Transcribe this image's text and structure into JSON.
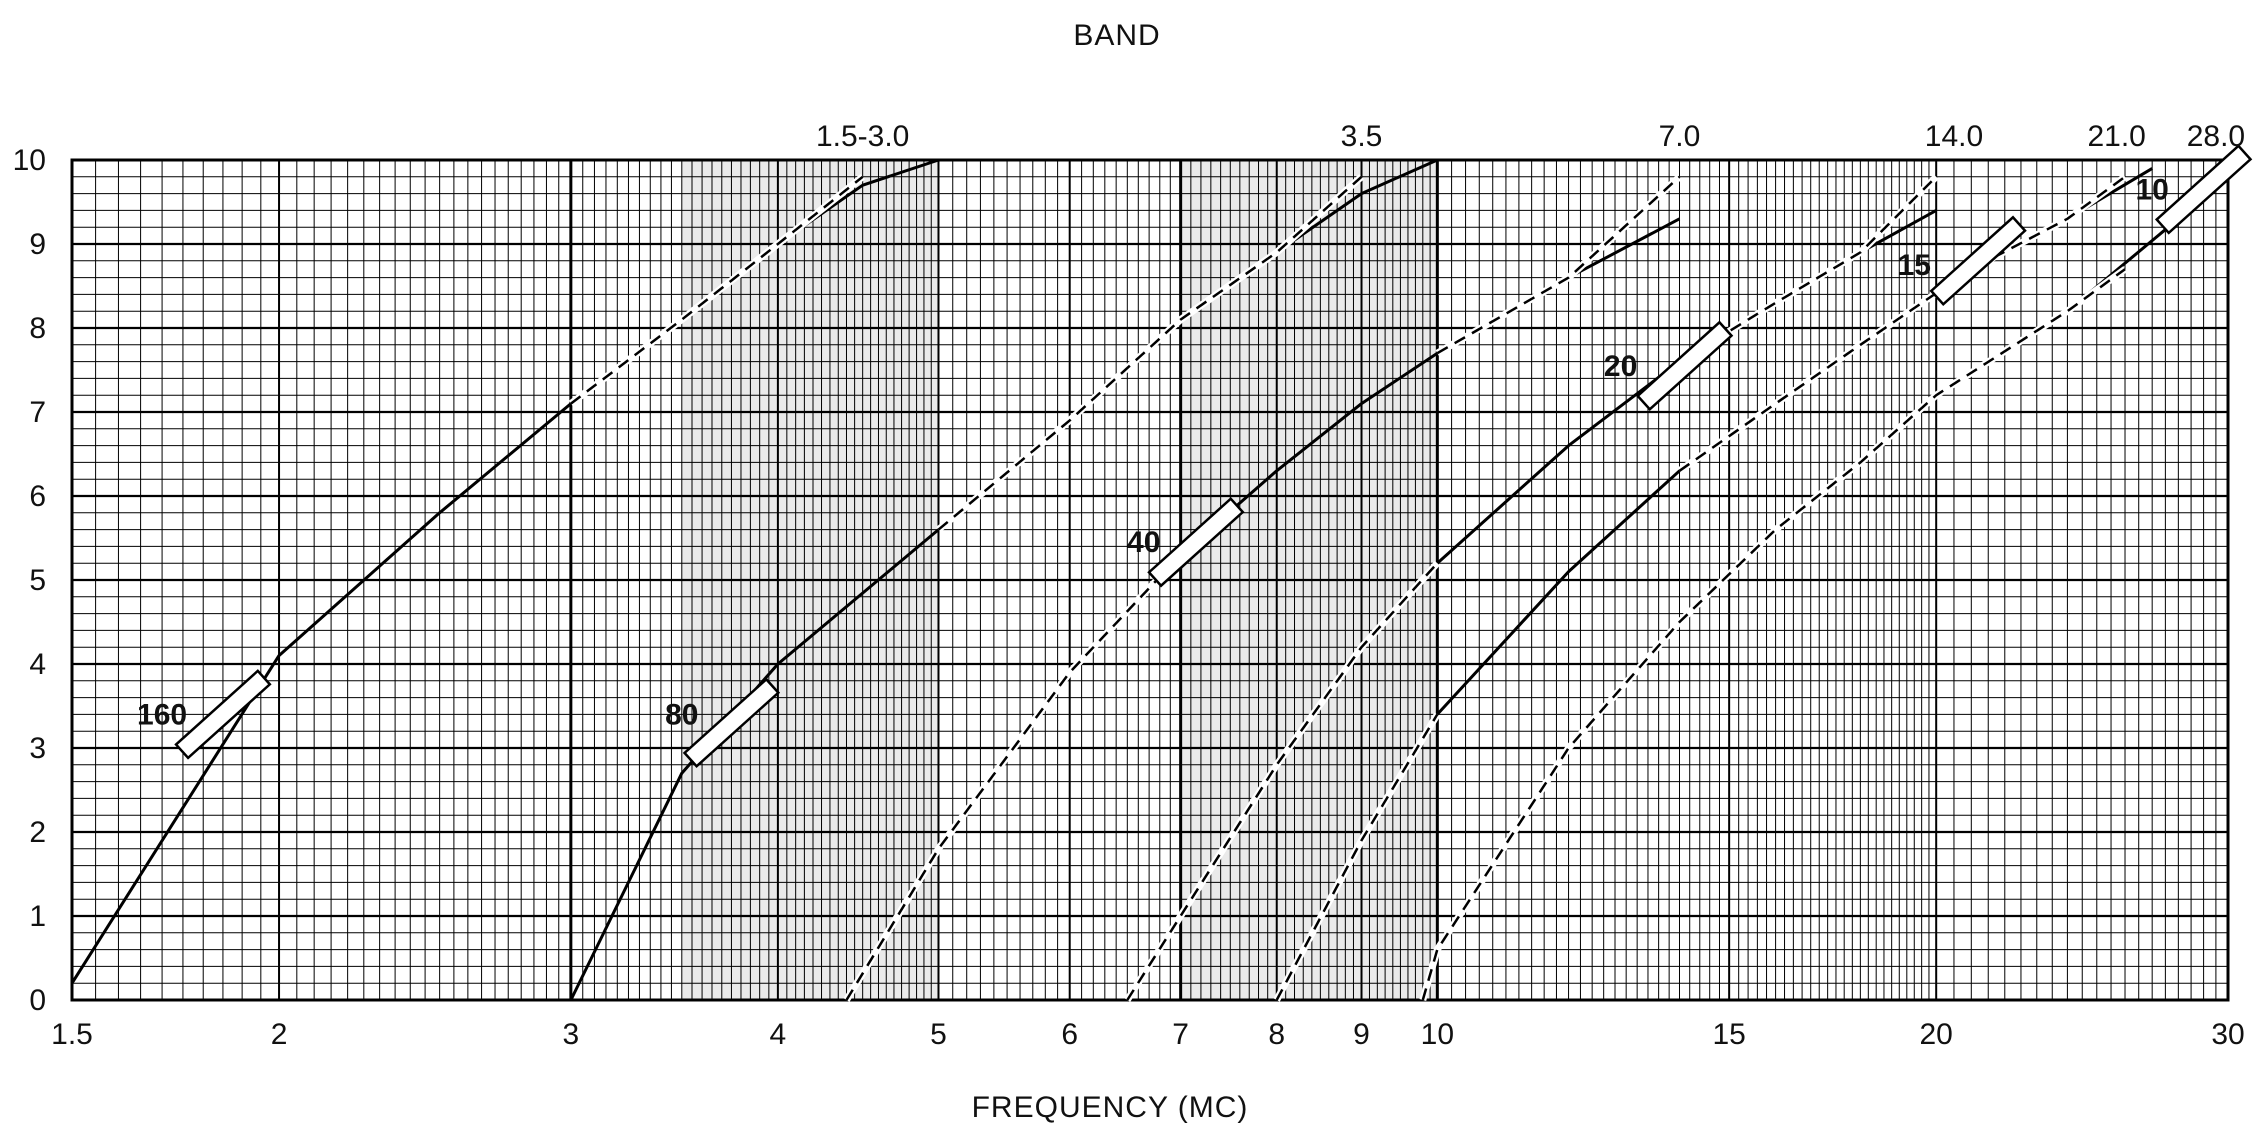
{
  "chart_data": {
    "type": "line",
    "title": "BAND",
    "xlabel": "FREQUENCY (MC)",
    "ylabel": "",
    "xscale": "log",
    "xlim": [
      1.5,
      30
    ],
    "ylim": [
      0,
      10
    ],
    "x_ticks": [
      1.5,
      2,
      3,
      4,
      5,
      6,
      7,
      8,
      9,
      10,
      15,
      20,
      30
    ],
    "x_tick_labels": [
      "1.5",
      "2",
      "3",
      "4",
      "5",
      "6",
      "7",
      "8",
      "9",
      "10",
      "15",
      "20",
      "30"
    ],
    "y_ticks": [
      0,
      1,
      2,
      3,
      4,
      5,
      6,
      7,
      8,
      9,
      10
    ],
    "y_tick_labels": [
      "0",
      "1",
      "2",
      "3",
      "4",
      "5",
      "6",
      "7",
      "8",
      "9",
      "10"
    ],
    "grid": true,
    "shaded_x_ranges": [
      [
        3.5,
        5.0
      ],
      [
        7.0,
        10.0
      ]
    ],
    "band_labels": [
      {
        "text": "1.5-3.0",
        "x": 4.5
      },
      {
        "text": "3.5",
        "x": 9.0
      },
      {
        "text": "7.0",
        "x": 14.0
      },
      {
        "text": "14.0",
        "x": 20.5
      },
      {
        "text": "21.0",
        "x": 25.7
      },
      {
        "text": "28.0",
        "x": 29.5
      }
    ],
    "series": [
      {
        "style": "solid",
        "x": [
          1.5,
          2.0,
          2.5,
          3.0,
          3.5,
          4.0,
          4.5,
          5.0
        ],
        "y": [
          0.2,
          4.1,
          5.8,
          7.1,
          8.1,
          9.0,
          9.7,
          10.0
        ]
      },
      {
        "style": "solid",
        "x": [
          3.0,
          3.5,
          4.0,
          5.0,
          6.0,
          7.0,
          8.0,
          9.0,
          10.0
        ],
        "y": [
          0.0,
          2.7,
          4.0,
          5.6,
          6.9,
          8.1,
          8.9,
          9.6,
          10.0
        ]
      },
      {
        "style": "solid",
        "x": [
          4.4,
          5.0,
          6.0,
          7.0,
          8.0,
          9.0,
          10.0,
          12.0,
          14.0
        ],
        "y": [
          0.0,
          1.8,
          3.9,
          5.3,
          6.3,
          7.1,
          7.7,
          8.6,
          9.3
        ]
      },
      {
        "style": "solid",
        "x": [
          6.5,
          7.0,
          8.0,
          9.0,
          10.0,
          12.0,
          14.0,
          16.0,
          18.0,
          20.0
        ],
        "y": [
          0.0,
          1.0,
          2.8,
          4.2,
          5.2,
          6.6,
          7.6,
          8.3,
          8.9,
          9.4
        ]
      },
      {
        "style": "solid",
        "x": [
          8.0,
          9.0,
          10.0,
          12.0,
          14.0,
          16.0,
          18.0,
          21.0,
          24.0,
          27.0
        ],
        "y": [
          0.0,
          1.9,
          3.4,
          5.1,
          6.3,
          7.1,
          7.8,
          8.7,
          9.3,
          9.9
        ]
      },
      {
        "style": "solid",
        "x": [
          9.8,
          10.0,
          12.0,
          14.0,
          16.0,
          18.0,
          20.0,
          24.0,
          28.0,
          30.0
        ],
        "y": [
          0.0,
          0.6,
          3.0,
          4.5,
          5.6,
          6.4,
          7.2,
          8.2,
          9.3,
          9.9
        ]
      }
    ],
    "dashed_extensions": [
      {
        "x": [
          3.0,
          3.5,
          4.0,
          4.5
        ],
        "y": [
          7.1,
          8.1,
          9.0,
          9.8
        ]
      },
      {
        "x": [
          5.0,
          6.0,
          7.0,
          8.0,
          9.0
        ],
        "y": [
          5.6,
          6.9,
          8.1,
          8.9,
          9.8
        ]
      },
      {
        "x": [
          4.4,
          5.0,
          6.0,
          7.0
        ],
        "y": [
          0.0,
          1.8,
          3.9,
          5.3
        ]
      },
      {
        "x": [
          10.0,
          12.0,
          14.0
        ],
        "y": [
          7.7,
          8.6,
          9.8
        ]
      },
      {
        "x": [
          6.5,
          7.0,
          8.0,
          9.0,
          10.0
        ],
        "y": [
          0.0,
          1.0,
          2.8,
          4.2,
          5.2
        ]
      },
      {
        "x": [
          14.0,
          16.0,
          18.0,
          20.0
        ],
        "y": [
          7.6,
          8.3,
          8.9,
          9.8
        ]
      },
      {
        "x": [
          8.0,
          9.0,
          10.0
        ],
        "y": [
          0.0,
          1.9,
          3.4
        ]
      },
      {
        "x": [
          14.0,
          16.0,
          18.0,
          21.0,
          24.0,
          26.0
        ],
        "y": [
          6.3,
          7.1,
          7.8,
          8.7,
          9.3,
          9.8
        ]
      },
      {
        "x": [
          9.8,
          10.0,
          12.0,
          14.0,
          16.0,
          18.0,
          20.0,
          24.0,
          26.0
        ],
        "y": [
          0.0,
          0.6,
          3.0,
          4.5,
          5.6,
          6.4,
          7.2,
          8.2,
          8.7
        ]
      }
    ],
    "markers": [
      {
        "label": "160",
        "x": 1.85,
        "y": 3.4,
        "label_x": 1.7,
        "label_y": 3.4
      },
      {
        "label": "80",
        "x": 3.75,
        "y": 3.3,
        "label_x": 3.5,
        "label_y": 3.4
      },
      {
        "label": "40",
        "x": 7.15,
        "y": 5.45,
        "label_x": 6.65,
        "label_y": 5.45
      },
      {
        "label": "20",
        "x": 14.1,
        "y": 7.55,
        "label_x": 12.9,
        "label_y": 7.55
      },
      {
        "label": "15",
        "x": 21.2,
        "y": 8.8,
        "label_x": 19.4,
        "label_y": 8.75
      },
      {
        "label": "10",
        "x": 29.0,
        "y": 9.65,
        "label_x": 27.0,
        "label_y": 9.65
      }
    ]
  }
}
